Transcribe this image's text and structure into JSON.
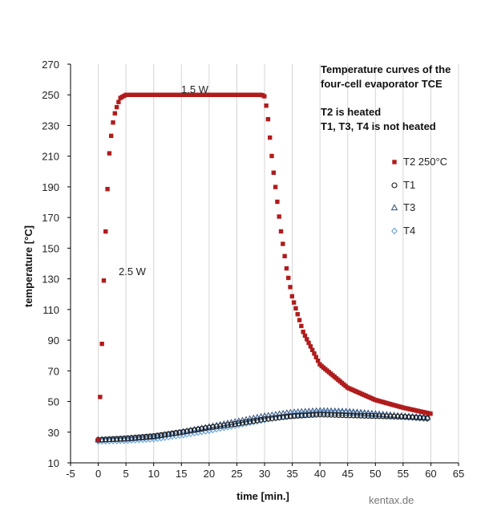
{
  "chart_data": {
    "type": "scatter",
    "title_lines": [
      "Temperature curves of the",
      "four-cell evaporator TCE"
    ],
    "note_lines": [
      "T2 is heated",
      "T1, T3, T4 is not heated"
    ],
    "xlabel": "time [min.]",
    "ylabel": "temperature [°C]",
    "xlim": [
      -5,
      65
    ],
    "ylim": [
      10,
      270
    ],
    "xticks": [
      -5,
      0,
      5,
      10,
      15,
      20,
      25,
      30,
      35,
      40,
      45,
      50,
      55,
      60,
      65
    ],
    "yticks": [
      10,
      30,
      50,
      70,
      90,
      110,
      130,
      150,
      170,
      190,
      210,
      230,
      250,
      270
    ],
    "grid": "vertical",
    "legend_position": "right",
    "annotations": [
      {
        "text": "1.5 W",
        "x": 17.5,
        "y": 258
      },
      {
        "text": "2.5 W",
        "x": 4.5,
        "y": 134
      }
    ],
    "series": [
      {
        "name": "T2 250°C",
        "marker": "square",
        "color": "#b01c1c",
        "heat_on": 0.0,
        "heat_off": 30.0,
        "interval": 0.333,
        "start": 25,
        "setpoint": 250,
        "end": 42,
        "x": [
          0,
          0.5,
          1,
          1.5,
          2,
          2.5,
          3,
          3.5,
          4,
          5,
          6,
          7,
          8,
          10,
          15,
          20,
          25,
          29.5,
          30,
          30.5,
          31,
          31.5,
          32,
          33,
          34,
          35,
          37,
          40,
          45,
          50,
          55,
          60
        ],
        "y": [
          25,
          67,
          129,
          177,
          212,
          229,
          238,
          244,
          248,
          250,
          250,
          250,
          250,
          250,
          250,
          250,
          250,
          250,
          249,
          239,
          221,
          203,
          189,
          160,
          136,
          118,
          95,
          74,
          59,
          51,
          46,
          42
        ]
      },
      {
        "name": "T1",
        "marker": "circle",
        "color": "#1a1a1a",
        "interval": 0.667,
        "x": [
          0,
          5,
          10,
          15,
          20,
          25,
          30,
          35,
          40,
          45,
          50,
          55,
          60
        ],
        "y": [
          25,
          26,
          27.5,
          30,
          33,
          35.5,
          38.5,
          40.5,
          41.5,
          41,
          40.5,
          40,
          39
        ]
      },
      {
        "name": "T3",
        "marker": "triangle",
        "color": "#2f4f80",
        "interval": 0.667,
        "x": [
          0,
          5,
          10,
          15,
          20,
          25,
          30,
          35,
          40,
          45,
          50,
          55,
          60
        ],
        "y": [
          25,
          25.5,
          27,
          30,
          33.5,
          37,
          40.5,
          43,
          44,
          43.5,
          42,
          40.5,
          39.5
        ]
      },
      {
        "name": "T4",
        "marker": "diamond",
        "color": "#5b9bd5",
        "interval": 0.667,
        "x": [
          0,
          5,
          10,
          15,
          20,
          25,
          30,
          35,
          40,
          45,
          50,
          55,
          60
        ],
        "y": [
          24,
          24.5,
          25.5,
          28,
          31,
          34.5,
          38,
          41,
          42.5,
          42.5,
          41.5,
          40,
          38.5
        ]
      }
    ]
  },
  "watermark": "kentax.de"
}
